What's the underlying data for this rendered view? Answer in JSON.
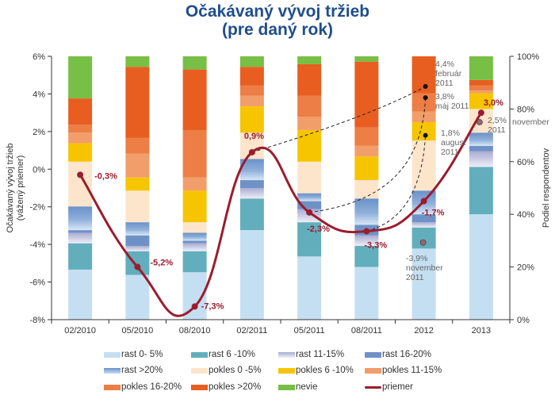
{
  "chart_data": {
    "type": "bar",
    "subtype": "stacked-100-percent with line overlay",
    "title": "Očakávaný vývoj tržieb",
    "subtitle": "(pre daný rok)",
    "ylabel_left": [
      "Očakávaný vývoj tržieb",
      "(vážený priemer)"
    ],
    "ylabel_right": "Podiel respondentov",
    "ylim_left": [
      -8,
      6
    ],
    "ylim_right": [
      0,
      100
    ],
    "left_ticks": [
      "-8%",
      "-6%",
      "-4%",
      "-2%",
      "0%",
      "2%",
      "4%",
      "6%"
    ],
    "right_ticks": [
      "0%",
      "20%",
      "40%",
      "60%",
      "80%",
      "100%"
    ],
    "categories": [
      "02/2010",
      "05/2010",
      "08/2010",
      "02/2011",
      "05/2011",
      "08/2011",
      "2012",
      "2013"
    ],
    "series": [
      {
        "name": "rast 0- 5%",
        "color": "#c5dff2",
        "values": [
          19,
          17,
          18,
          34,
          24,
          20,
          27,
          40
        ]
      },
      {
        "name": "rast 6 -10%",
        "color": "#62aebd",
        "values": [
          10,
          9,
          8,
          12,
          13,
          8,
          8,
          18
        ]
      },
      {
        "name": "rast 11-15%",
        "color": "#c3c5e0",
        "gradient": "lavender",
        "values": [
          4,
          2,
          3,
          4,
          5,
          4,
          2,
          6
        ]
      },
      {
        "name": "rast 16-20%",
        "color": "#6f92c6",
        "values": [
          1,
          4,
          1,
          3,
          3,
          4,
          3,
          2
        ]
      },
      {
        "name": "rast >20%",
        "color": "#6a91c8",
        "gradient": "blue",
        "values": [
          9,
          5,
          3,
          8,
          3,
          10,
          9,
          5
        ]
      },
      {
        "name": "pokles 0 -5%",
        "color": "#fde5cb",
        "values": [
          17,
          12,
          4,
          10,
          12,
          7,
          19,
          9
        ]
      },
      {
        "name": "pokles 6 -10%",
        "color": "#f7c500",
        "values": [
          7,
          5,
          12,
          10,
          12,
          9,
          7,
          6
        ]
      },
      {
        "name": "pokles 11-15%",
        "color": "#f29e6b",
        "values": [
          4,
          9,
          5,
          4,
          5,
          4,
          4,
          1
        ]
      },
      {
        "name": "pokles 16-20%",
        "color": "#ed7e45",
        "values": [
          3,
          6,
          18,
          4,
          8,
          7,
          7,
          2
        ]
      },
      {
        "name": "pokles >20%",
        "color": "#e85e20",
        "values": [
          10,
          27,
          23,
          7,
          12,
          25,
          14,
          2
        ]
      },
      {
        "name": "nevie",
        "color": "#78bf45",
        "values": [
          16,
          4,
          5,
          4,
          3,
          2,
          0,
          9
        ]
      }
    ],
    "line": {
      "name": "priemer",
      "color": "#9b1c2e",
      "axis": "left",
      "values": [
        -0.3,
        -5.2,
        -7.3,
        0.9,
        -2.3,
        -3.3,
        -1.7,
        3.0
      ],
      "labels": [
        "-0,3%",
        "-5,2%",
        "-7,3%",
        "0,9%",
        "-2,3%",
        "-3,3%",
        "-1,7%",
        "3,0%"
      ]
    },
    "earlier_forecasts": [
      {
        "from_category": "02/2011",
        "to_category": "2012",
        "value": 4.4,
        "label": [
          "4,4%",
          "február",
          "2011"
        ]
      },
      {
        "from_category": "05/2011",
        "to_category": "2012",
        "value": 3.8,
        "label": [
          "3,8%",
          "máj 2011"
        ]
      },
      {
        "from_category": "08/2011",
        "to_category": "2012",
        "value": 1.8,
        "label": [
          "1,8%",
          "august",
          "2011"
        ]
      }
    ],
    "november_points": [
      {
        "category": "2012",
        "value": -3.9,
        "label": [
          "-3,9%",
          "november",
          "2011"
        ]
      },
      {
        "category": "2013",
        "value": 2.5,
        "label": [
          "2,5%",
          "2011"
        ],
        "extra_label": "november"
      }
    ],
    "legend_position": "bottom"
  }
}
